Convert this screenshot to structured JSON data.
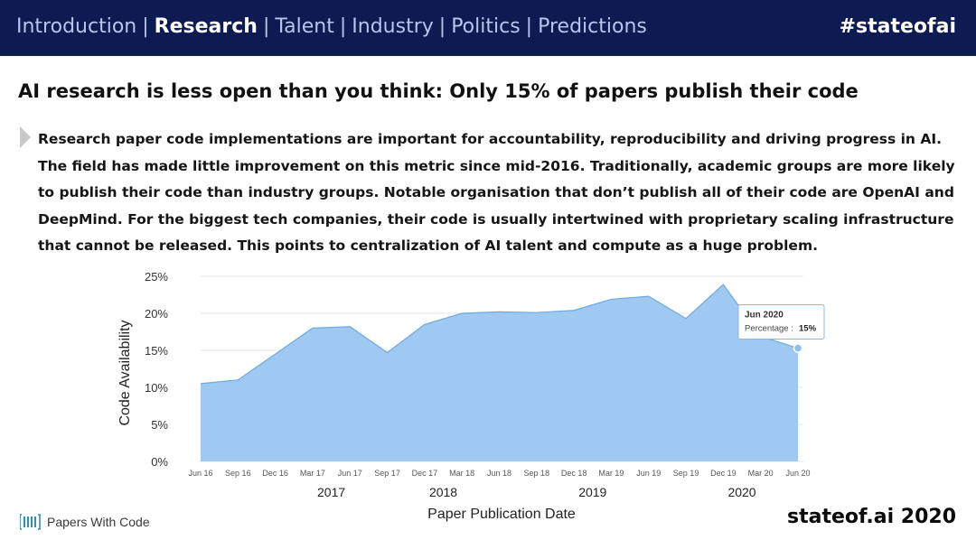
{
  "nav": {
    "items": [
      {
        "label": "Introduction",
        "active": false
      },
      {
        "label": "Research",
        "active": true
      },
      {
        "label": "Talent",
        "active": false
      },
      {
        "label": "Industry",
        "active": false
      },
      {
        "label": "Politics",
        "active": false
      },
      {
        "label": "Predictions",
        "active": false
      }
    ],
    "separator": "|",
    "hashtag": "#stateofai"
  },
  "headline": "AI research is less open than you think: Only 15% of papers publish their code",
  "body_text": "Research paper code implementations are important for accountability, reproducibility and driving progress in AI. The field has made little improvement on this metric since mid-2016. Traditionally, academic groups are more likely to publish their code than industry groups. Notable organisation that don’t publish all of their code are OpenAI and DeepMind. For the biggest tech companies, their code is usually intertwined with proprietary scaling infrastructure that cannot be released. This points to centralization of AI talent and compute as a huge problem.",
  "footer": {
    "source": "Papers With Code",
    "brand": "stateof.ai 2020"
  },
  "colors": {
    "topbar": "#0e1a52",
    "area_fill": "#9fc9f0",
    "area_stroke": "#6ea9e2"
  },
  "chart_data": {
    "type": "area",
    "x": [
      "Jun 16",
      "Sep 16",
      "Dec 16",
      "Mar 17",
      "Jun 17",
      "Sep 17",
      "Dec 17",
      "Mar 18",
      "Jun 18",
      "Sep 18",
      "Dec 18",
      "Mar 19",
      "Jun 19",
      "Sep 19",
      "Dec 19",
      "Mar 20",
      "Jun 20"
    ],
    "year_labels": [
      {
        "label": "2017",
        "between": [
          "Mar 17",
          "Jun 17"
        ]
      },
      {
        "label": "2018",
        "between": [
          "Dec 17",
          "Mar 18"
        ]
      },
      {
        "label": "2019",
        "between": [
          "Dec 18",
          "Mar 19"
        ]
      },
      {
        "label": "2020",
        "between": [
          "Dec 19",
          "Mar 20"
        ]
      }
    ],
    "series": [
      {
        "values": [
          10.5,
          11,
          14.5,
          18,
          18.2,
          14.7,
          18.5,
          20,
          20.2,
          20.1,
          20.4,
          21.9,
          22.3,
          19.3,
          23.9,
          16.9,
          15.3
        ]
      }
    ],
    "xlabel": "Paper Publication Date",
    "ylabel": "Code Availability",
    "ylim": [
      0,
      25
    ],
    "yticks": [
      "0%",
      "5%",
      "10%",
      "15%",
      "20%",
      "25%"
    ],
    "grid": true,
    "tooltip": {
      "title": "Jun 2020",
      "label": "Percentage :",
      "value": "15%",
      "point": "Jun 20"
    }
  }
}
